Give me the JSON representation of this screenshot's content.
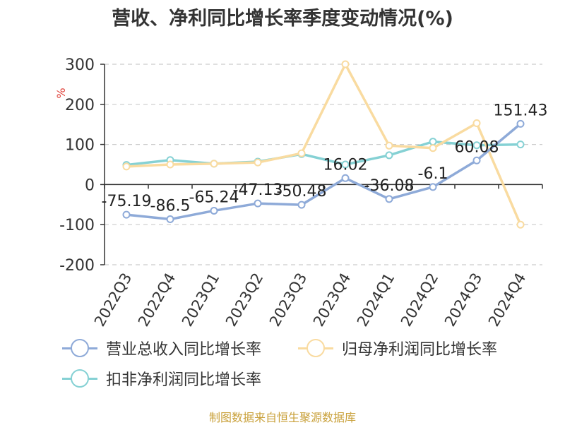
{
  "title": "营收、净利同比增长率季度变动情况(%)",
  "source_note": "制图数据来自恒生聚源数据库",
  "chart_data": {
    "type": "line",
    "title": "营收、净利同比增长率季度变动情况(%)",
    "ylabel": "%",
    "ylim": [
      -200,
      300
    ],
    "yticks": [
      -200,
      -100,
      0,
      100,
      200,
      300
    ],
    "ytick_labels": [
      "-200",
      "-100",
      "0",
      "100",
      "200",
      "300"
    ],
    "grid": true,
    "legend_position": "bottom",
    "categories": [
      "2022Q3",
      "2022Q4",
      "2023Q1",
      "2023Q2",
      "2023Q3",
      "2023Q4",
      "2024Q1",
      "2024Q2",
      "2024Q3",
      "2024Q4"
    ],
    "series": [
      {
        "name": "营业总收入同比增长率",
        "color": "#8eaad8",
        "values": [
          -75.19,
          -86.5,
          -65.24,
          -47.13,
          -50.48,
          16.02,
          -36.08,
          -6.1,
          60.08,
          151.43
        ],
        "labels": [
          "-75.19",
          "-86.5",
          "-65.24",
          "-47.13",
          "-50.48",
          "16.02",
          "-36.08",
          "-6.1",
          "60.08",
          "151.43"
        ]
      },
      {
        "name": "归母净利润同比增长率",
        "color": "#f9dba0",
        "values": [
          45,
          50,
          52,
          55,
          78,
          300,
          97,
          91,
          153,
          -100
        ]
      },
      {
        "name": "扣非净利润同比增长率",
        "color": "#85d1d4",
        "values": [
          49,
          61,
          52,
          57,
          76,
          50,
          73,
          107,
          98,
          100
        ]
      }
    ]
  }
}
